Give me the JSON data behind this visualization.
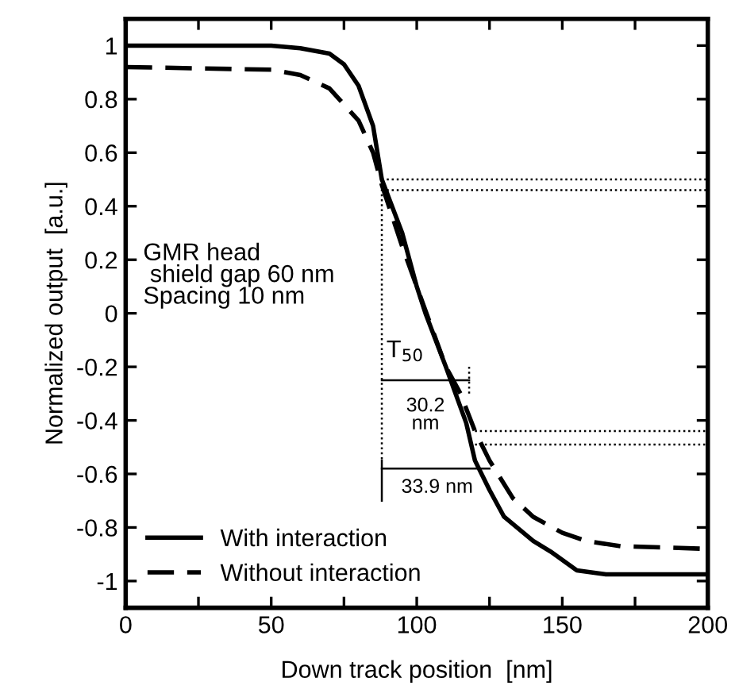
{
  "chart_data": {
    "type": "line",
    "xlabel": "Down track position  [nm]",
    "ylabel": "Normalized output  [a.u.]",
    "xlim": [
      0,
      200
    ],
    "ylim": [
      -1.1,
      1.1
    ],
    "xticks": [
      0,
      {
        "value": 25,
        "label": null
      },
      50,
      {
        "value": 75,
        "label": null
      },
      100,
      {
        "value": 125,
        "label": null
      },
      150,
      {
        "value": 175,
        "label": null
      },
      200
    ],
    "yticks": [
      {
        "value": -1,
        "label": "-1"
      },
      {
        "value": -0.8,
        "label": "-0.8"
      },
      {
        "value": -0.6,
        "label": "-0.6"
      },
      {
        "value": -0.4,
        "label": "-0.4"
      },
      {
        "value": -0.2,
        "label": "-0.2"
      },
      0,
      0.2,
      0.4,
      0.6,
      0.8,
      1
    ],
    "grid": false,
    "legend": "bottom left",
    "series": [
      {
        "name": "With interaction",
        "color": "#000000",
        "line_style": "solid",
        "x": [
          0,
          50,
          60,
          70,
          75,
          80,
          85,
          88,
          95,
          100,
          103,
          110,
          117,
          120,
          125,
          130,
          140,
          146,
          155,
          165,
          200
        ],
        "values": [
          1.0,
          1.0,
          0.99,
          0.97,
          0.93,
          0.85,
          0.7,
          0.5,
          0.3,
          0.1,
          0.0,
          -0.2,
          -0.41,
          -0.55,
          -0.66,
          -0.76,
          -0.85,
          -0.89,
          -0.96,
          -0.975,
          -0.975
        ]
      },
      {
        "name": "Without interaction",
        "color": "#000000",
        "line_style": "dashed",
        "x": [
          0,
          50,
          60,
          70,
          80,
          85,
          88,
          95,
          100,
          105,
          110,
          115,
          120,
          125,
          133,
          140,
          150,
          158,
          170,
          200
        ],
        "values": [
          0.92,
          0.91,
          0.89,
          0.84,
          0.72,
          0.6,
          0.48,
          0.25,
          0.1,
          -0.05,
          -0.2,
          -0.3,
          -0.44,
          -0.55,
          -0.69,
          -0.76,
          -0.82,
          -0.85,
          -0.87,
          -0.88
        ]
      },
      {
        "color": "#000000",
        "line_style": "dotted",
        "x": [
          88,
          200
        ],
        "values": [
          0.5,
          0.5
        ]
      },
      {
        "color": "#000000",
        "line_style": "dotted",
        "x": [
          88,
          200
        ],
        "values": [
          0.46,
          0.46
        ]
      },
      {
        "color": "#000000",
        "line_style": "dotted",
        "x": [
          120,
          200
        ],
        "values": [
          -0.44,
          -0.44
        ]
      },
      {
        "color": "#000000",
        "line_style": "dotted",
        "x": [
          120,
          200
        ],
        "values": [
          -0.49,
          -0.49
        ]
      },
      {
        "color": "#000000",
        "line_style": "dotted",
        "x": [
          88,
          88
        ],
        "values": [
          0.5,
          -0.55
        ]
      },
      {
        "color": "#000000",
        "line_style": "dotted",
        "x": [
          118,
          118
        ],
        "values": [
          -0.2,
          -0.3
        ]
      },
      {
        "color": "#000000",
        "line_style": "solid",
        "x": [
          88,
          88
        ],
        "values": [
          -0.55,
          -0.7
        ]
      },
      {
        "color": "#000000",
        "line_style": "solid",
        "x": [
          88,
          118
        ],
        "values": [
          -0.25,
          -0.25
        ]
      },
      {
        "color": "#000000",
        "line_style": "solid",
        "x": [
          88,
          125
        ],
        "values": [
          -0.58,
          -0.58
        ]
      }
    ],
    "annotations": [
      "GMR head\n shield gap 60 nm\nSpacing 10 nm",
      "T$_{50}$",
      "30.2\nnm",
      "33.9 nm"
    ]
  }
}
